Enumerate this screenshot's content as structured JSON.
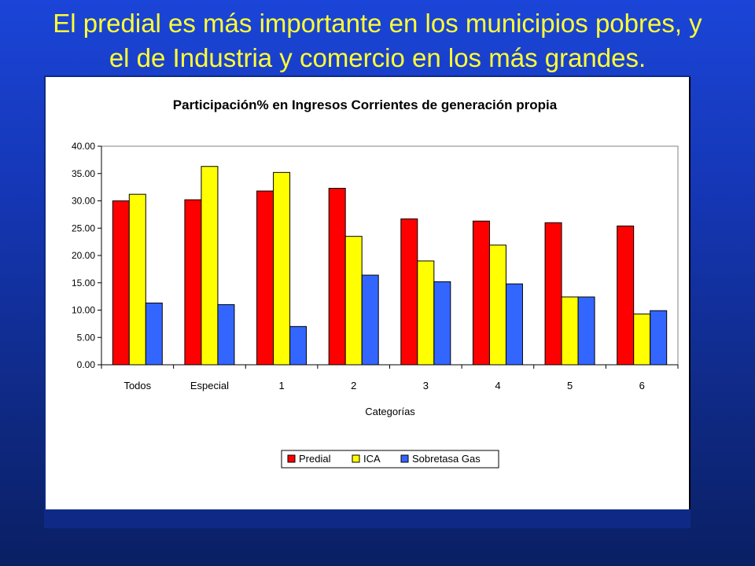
{
  "slide": {
    "title_line1": "El predial es más importante en los municipios pobres, y",
    "title_line2": "el de Industria y comercio en los más grandes."
  },
  "chart_data": {
    "type": "bar",
    "title": "Participación% en Ingresos Corrientes de generación propia",
    "xlabel": "Categorías",
    "ylabel": "",
    "ylim": [
      0,
      40
    ],
    "yticks": [
      "0.00",
      "5.00",
      "10.00",
      "15.00",
      "20.00",
      "25.00",
      "30.00",
      "35.00",
      "40.00"
    ],
    "categories": [
      "Todos",
      "Especial",
      "1",
      "2",
      "3",
      "4",
      "5",
      "6"
    ],
    "series": [
      {
        "name": "Predial",
        "color": "#ff0000",
        "values": [
          30.0,
          30.2,
          31.8,
          32.3,
          26.7,
          26.3,
          26.0,
          25.4
        ]
      },
      {
        "name": "ICA",
        "color": "#ffff00",
        "values": [
          31.2,
          36.3,
          35.2,
          23.5,
          19.0,
          21.9,
          12.4,
          9.3
        ]
      },
      {
        "name": "Sobretasa Gas",
        "color": "#3366ff",
        "values": [
          11.3,
          11.0,
          7.0,
          16.4,
          15.2,
          14.8,
          12.4,
          9.9
        ]
      }
    ],
    "grid": false,
    "legend_position": "bottom"
  }
}
